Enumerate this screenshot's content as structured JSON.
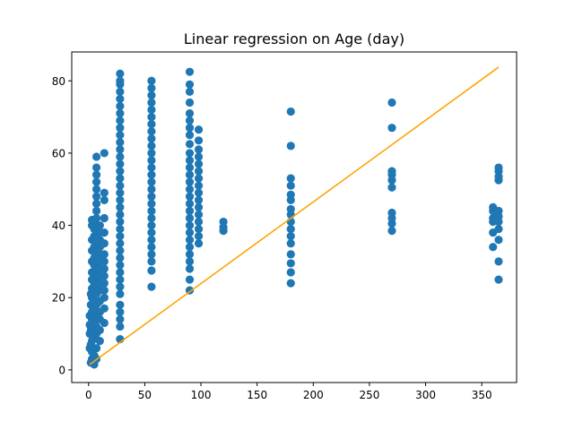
{
  "chart_data": {
    "type": "scatter",
    "title": "Linear regression on Age (day)",
    "xlabel": "",
    "ylabel": "",
    "xlim": [
      -15,
      381
    ],
    "ylim": [
      -3.5,
      88
    ],
    "xticks": [
      0,
      50,
      100,
      150,
      200,
      250,
      300,
      350
    ],
    "yticks": [
      0,
      20,
      40,
      60,
      80
    ],
    "grid": false,
    "colors": {
      "points": "#1f77b4",
      "line": "#ffa500"
    },
    "scatter_points": [
      [
        1,
        6
      ],
      [
        1,
        10
      ],
      [
        1,
        12.5
      ],
      [
        1,
        15
      ],
      [
        2,
        2
      ],
      [
        2,
        7
      ],
      [
        2,
        11
      ],
      [
        2,
        18
      ],
      [
        2,
        21
      ],
      [
        3,
        3
      ],
      [
        3,
        5
      ],
      [
        3,
        8
      ],
      [
        3,
        14
      ],
      [
        3,
        16
      ],
      [
        3,
        20
      ],
      [
        3,
        22.5
      ],
      [
        3,
        25
      ],
      [
        3,
        27
      ],
      [
        3,
        30
      ],
      [
        3,
        33
      ],
      [
        3,
        36
      ],
      [
        3,
        40
      ],
      [
        3,
        41.5
      ],
      [
        5,
        1.5
      ],
      [
        5,
        4
      ],
      [
        5,
        9
      ],
      [
        5,
        13
      ],
      [
        5,
        17
      ],
      [
        5,
        19
      ],
      [
        5,
        22
      ],
      [
        5,
        24
      ],
      [
        5,
        26
      ],
      [
        5,
        29
      ],
      [
        5,
        31
      ],
      [
        5,
        34
      ],
      [
        5,
        37
      ],
      [
        5,
        39
      ],
      [
        7,
        3
      ],
      [
        7,
        6
      ],
      [
        7,
        10
      ],
      [
        7,
        12
      ],
      [
        7,
        15
      ],
      [
        7,
        18
      ],
      [
        7,
        21
      ],
      [
        7,
        23
      ],
      [
        7,
        25
      ],
      [
        7,
        28
      ],
      [
        7,
        30
      ],
      [
        7,
        33
      ],
      [
        7,
        35
      ],
      [
        7,
        38
      ],
      [
        7,
        40
      ],
      [
        7,
        42
      ],
      [
        7,
        44
      ],
      [
        7,
        46
      ],
      [
        7,
        48
      ],
      [
        7,
        50
      ],
      [
        7,
        52
      ],
      [
        7,
        54
      ],
      [
        7,
        56
      ],
      [
        7,
        59
      ],
      [
        10,
        8
      ],
      [
        10,
        11
      ],
      [
        10,
        14
      ],
      [
        10,
        16
      ],
      [
        10,
        19
      ],
      [
        10,
        22
      ],
      [
        10,
        24
      ],
      [
        10,
        26
      ],
      [
        10,
        28
      ],
      [
        10,
        30
      ],
      [
        10,
        32
      ],
      [
        10,
        34
      ],
      [
        10,
        36
      ],
      [
        10,
        38
      ],
      [
        10,
        40
      ],
      [
        14,
        13
      ],
      [
        14,
        17
      ],
      [
        14,
        20
      ],
      [
        14,
        22
      ],
      [
        14,
        24
      ],
      [
        14,
        26
      ],
      [
        14,
        28
      ],
      [
        14,
        30
      ],
      [
        14,
        32
      ],
      [
        14,
        35
      ],
      [
        14,
        38
      ],
      [
        14,
        42
      ],
      [
        14,
        47
      ],
      [
        14,
        49
      ],
      [
        14,
        60
      ],
      [
        28,
        8.5
      ],
      [
        28,
        12
      ],
      [
        28,
        14
      ],
      [
        28,
        16
      ],
      [
        28,
        18
      ],
      [
        28,
        21
      ],
      [
        28,
        23
      ],
      [
        28,
        25
      ],
      [
        28,
        27
      ],
      [
        28,
        29
      ],
      [
        28,
        31
      ],
      [
        28,
        33
      ],
      [
        28,
        35
      ],
      [
        28,
        37
      ],
      [
        28,
        39
      ],
      [
        28,
        41
      ],
      [
        28,
        43
      ],
      [
        28,
        45
      ],
      [
        28,
        47
      ],
      [
        28,
        49
      ],
      [
        28,
        51
      ],
      [
        28,
        53
      ],
      [
        28,
        55
      ],
      [
        28,
        57
      ],
      [
        28,
        59
      ],
      [
        28,
        61
      ],
      [
        28,
        63
      ],
      [
        28,
        65
      ],
      [
        28,
        67
      ],
      [
        28,
        69
      ],
      [
        28,
        71
      ],
      [
        28,
        73
      ],
      [
        28,
        75
      ],
      [
        28,
        77
      ],
      [
        28,
        79
      ],
      [
        28,
        80
      ],
      [
        28,
        82
      ],
      [
        56,
        23
      ],
      [
        56,
        27.5
      ],
      [
        56,
        30
      ],
      [
        56,
        32
      ],
      [
        56,
        34
      ],
      [
        56,
        36
      ],
      [
        56,
        38
      ],
      [
        56,
        40
      ],
      [
        56,
        42
      ],
      [
        56,
        44
      ],
      [
        56,
        46
      ],
      [
        56,
        48
      ],
      [
        56,
        50
      ],
      [
        56,
        52
      ],
      [
        56,
        54
      ],
      [
        56,
        56
      ],
      [
        56,
        58
      ],
      [
        56,
        60
      ],
      [
        56,
        62
      ],
      [
        56,
        64
      ],
      [
        56,
        66
      ],
      [
        56,
        68
      ],
      [
        56,
        70
      ],
      [
        56,
        72
      ],
      [
        56,
        74
      ],
      [
        56,
        76
      ],
      [
        56,
        78
      ],
      [
        56,
        80
      ],
      [
        90,
        22
      ],
      [
        90,
        25
      ],
      [
        90,
        28
      ],
      [
        90,
        30
      ],
      [
        90,
        32
      ],
      [
        90,
        34
      ],
      [
        90,
        36
      ],
      [
        90,
        38
      ],
      [
        90,
        40
      ],
      [
        90,
        42
      ],
      [
        90,
        44
      ],
      [
        90,
        46
      ],
      [
        90,
        48
      ],
      [
        90,
        50
      ],
      [
        90,
        52
      ],
      [
        90,
        54
      ],
      [
        90,
        56
      ],
      [
        90,
        58
      ],
      [
        90,
        60
      ],
      [
        90,
        62.5
      ],
      [
        90,
        65
      ],
      [
        90,
        67
      ],
      [
        90,
        69
      ],
      [
        90,
        71
      ],
      [
        90,
        74
      ],
      [
        90,
        77
      ],
      [
        90,
        79
      ],
      [
        90,
        82.5
      ],
      [
        98,
        35
      ],
      [
        98,
        37
      ],
      [
        98,
        39
      ],
      [
        98,
        41
      ],
      [
        98,
        43
      ],
      [
        98,
        45
      ],
      [
        98,
        47
      ],
      [
        98,
        49
      ],
      [
        98,
        51
      ],
      [
        98,
        53
      ],
      [
        98,
        55
      ],
      [
        98,
        57
      ],
      [
        98,
        59
      ],
      [
        98,
        61
      ],
      [
        98,
        63.5
      ],
      [
        98,
        66.5
      ],
      [
        120,
        38.5
      ],
      [
        120,
        39.5
      ],
      [
        120,
        41
      ],
      [
        180,
        24
      ],
      [
        180,
        27
      ],
      [
        180,
        29.5
      ],
      [
        180,
        32
      ],
      [
        180,
        35
      ],
      [
        180,
        37
      ],
      [
        180,
        39
      ],
      [
        180,
        41
      ],
      [
        180,
        43
      ],
      [
        180,
        44.5
      ],
      [
        180,
        47
      ],
      [
        180,
        48.5
      ],
      [
        180,
        51
      ],
      [
        180,
        53
      ],
      [
        180,
        62
      ],
      [
        180,
        71.5
      ],
      [
        270,
        38.5
      ],
      [
        270,
        40.5
      ],
      [
        270,
        42
      ],
      [
        270,
        43.5
      ],
      [
        270,
        50.5
      ],
      [
        270,
        52.5
      ],
      [
        270,
        54
      ],
      [
        270,
        55
      ],
      [
        270,
        67
      ],
      [
        270,
        74
      ],
      [
        360,
        34
      ],
      [
        360,
        38
      ],
      [
        360,
        41
      ],
      [
        360,
        42
      ],
      [
        360,
        44
      ],
      [
        360,
        45
      ],
      [
        365,
        25
      ],
      [
        365,
        30
      ],
      [
        365,
        36
      ],
      [
        365,
        39
      ],
      [
        365,
        41
      ],
      [
        365,
        42.5
      ],
      [
        365,
        44
      ],
      [
        365,
        52.5
      ],
      [
        365,
        53.5
      ],
      [
        365,
        55
      ],
      [
        365,
        56
      ]
    ],
    "regression_line": {
      "x": [
        1,
        365
      ],
      "y": [
        1.5,
        83.8
      ]
    }
  }
}
